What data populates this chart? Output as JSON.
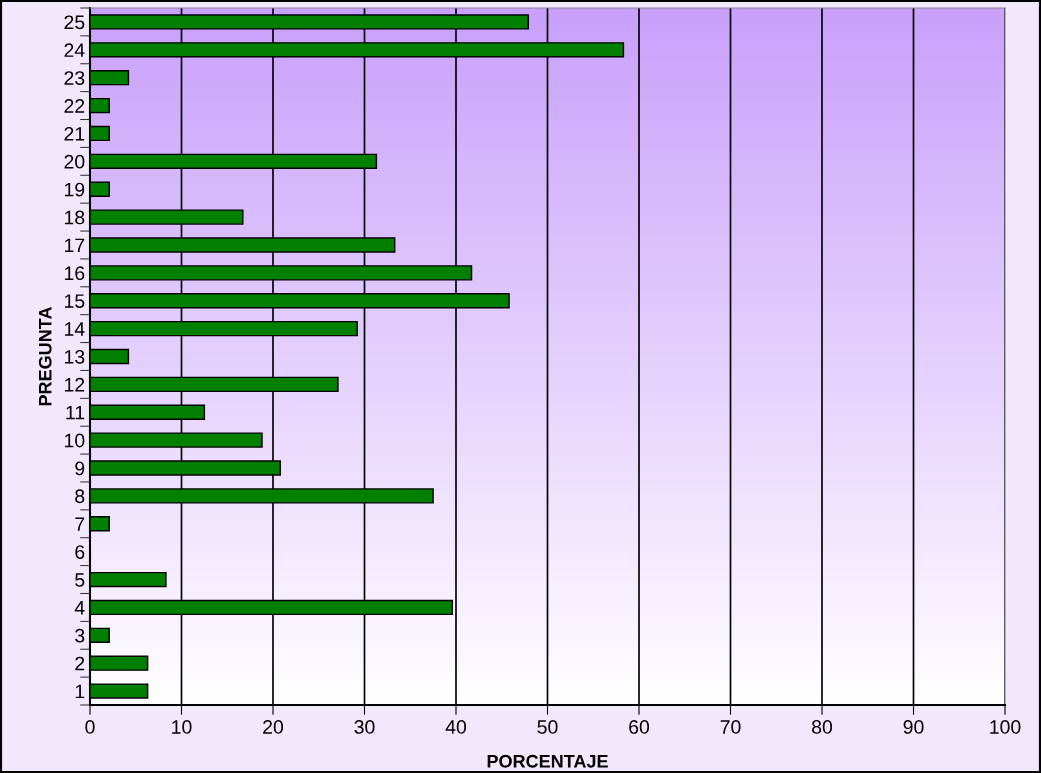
{
  "chart_data": {
    "type": "bar",
    "orientation": "horizontal",
    "xlabel": "PORCENTAJE",
    "ylabel": "PREGUNTA",
    "categories": [
      "25",
      "24",
      "23",
      "22",
      "21",
      "20",
      "19",
      "18",
      "17",
      "16",
      "15",
      "14",
      "13",
      "12",
      "11",
      "10",
      "9",
      "8",
      "7",
      "6",
      "5",
      "4",
      "3",
      "2",
      "1"
    ],
    "values": [
      47.9,
      58.3,
      4.2,
      2.1,
      2.1,
      31.3,
      2.1,
      16.7,
      33.3,
      41.7,
      45.8,
      29.2,
      4.2,
      27.1,
      12.5,
      18.8,
      20.8,
      37.5,
      2.1,
      0,
      8.3,
      39.6,
      2.1,
      6.3,
      6.3
    ],
    "color": "#007f00",
    "xlim": [
      0,
      100
    ],
    "xticks": [
      0,
      10,
      20,
      30,
      40,
      50,
      60,
      70,
      80,
      90,
      100
    ],
    "grid": "x",
    "legend": false
  }
}
